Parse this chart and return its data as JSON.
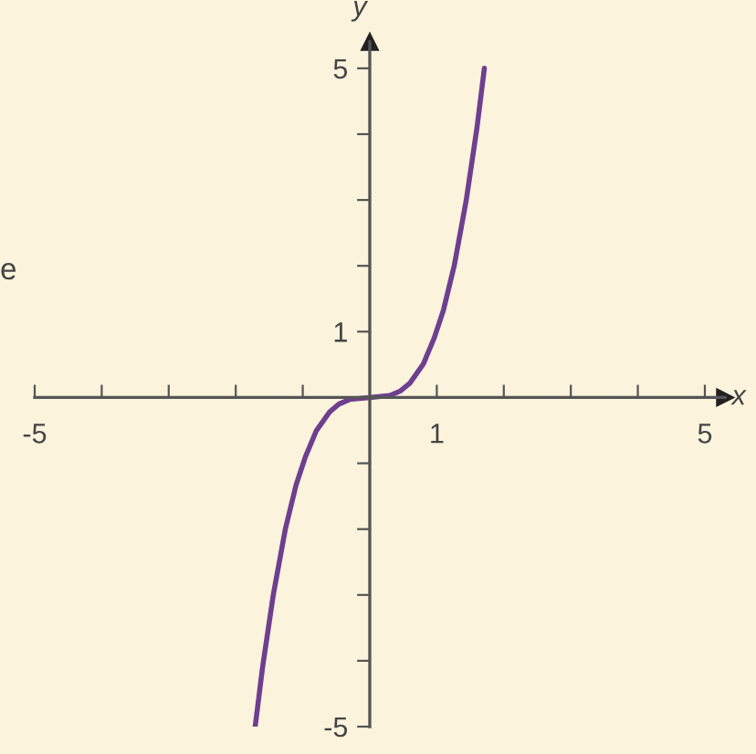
{
  "chart_data": {
    "type": "line",
    "xlabel": "x",
    "ylabel": "y",
    "series": [
      {
        "color": "#6e3f8f",
        "x": [
          -1.71,
          -1.6,
          -1.44,
          -1.26,
          -1.1,
          -0.96,
          -0.8,
          -0.6,
          -0.46,
          -0.3,
          0,
          0.3,
          0.46,
          0.6,
          0.8,
          0.96,
          1.1,
          1.26,
          1.44,
          1.6,
          1.71
        ],
        "values": [
          -5,
          -4.1,
          -3,
          -2,
          -1.33,
          -0.9,
          -0.51,
          -0.22,
          -0.1,
          -0.03,
          0,
          0.03,
          0.1,
          0.22,
          0.51,
          0.9,
          1.33,
          2,
          3,
          4.1,
          5
        ]
      }
    ],
    "xlim": [
      -5,
      5.3
    ],
    "ylim": [
      -5,
      5.4
    ],
    "xticks": [
      {
        "value": -5,
        "label": "-5"
      },
      {
        "value": -4,
        "label": null
      },
      {
        "value": -3,
        "label": null
      },
      {
        "value": -2,
        "label": null
      },
      {
        "value": -1,
        "label": null
      },
      1,
      {
        "value": 2,
        "label": null
      },
      {
        "value": 3,
        "label": null
      },
      {
        "value": 4,
        "label": null
      },
      5
    ],
    "yticks": [
      {
        "value": -5,
        "label": "-5"
      },
      {
        "value": -4,
        "label": null
      },
      {
        "value": -3,
        "label": null
      },
      {
        "value": -2,
        "label": null
      },
      {
        "value": -1,
        "label": null
      },
      1,
      {
        "value": 2,
        "label": null
      },
      {
        "value": 3,
        "label": null
      },
      {
        "value": 4,
        "label": null
      },
      5
    ],
    "annotations": [
      "e"
    ],
    "grid": false,
    "marker": "none",
    "line_style": "solid"
  }
}
